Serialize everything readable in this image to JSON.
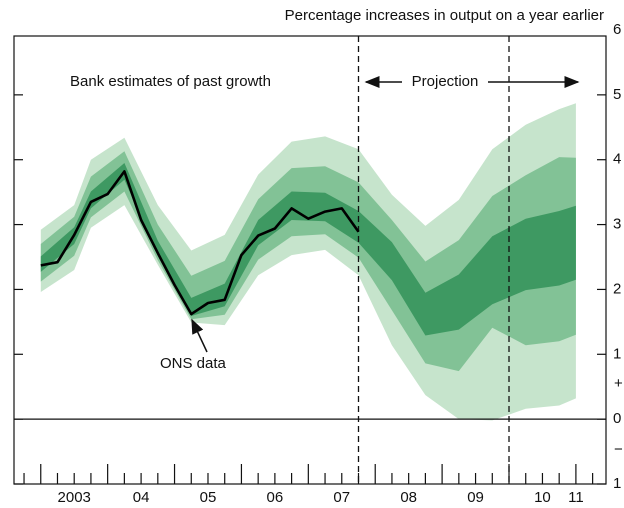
{
  "chart_data": {
    "type": "fan",
    "title": "Percentage increases in output on a year earlier",
    "annotations": [
      "Bank estimates of past growth",
      "Projection",
      "ONS data"
    ],
    "sign_labels": [
      "+",
      "−"
    ],
    "xlim": [
      2002.6,
      2011.45
    ],
    "xticks": [
      {
        "value": 2003.5,
        "label": "2003"
      },
      {
        "value": 2004.5,
        "label": "04"
      },
      {
        "value": 2005.5,
        "label": "05"
      },
      {
        "value": 2006.5,
        "label": "06"
      },
      {
        "value": 2007.5,
        "label": "07"
      },
      {
        "value": 2008.5,
        "label": "08"
      },
      {
        "value": 2009.5,
        "label": "09"
      },
      {
        "value": 2010.5,
        "label": "10"
      },
      {
        "value": 2011.0,
        "label": "11"
      }
    ],
    "ylim": [
      -1,
      6
    ],
    "yticks": [
      {
        "value": -1,
        "label": "1"
      },
      0,
      1,
      2,
      3,
      4,
      5,
      6
    ],
    "vlines": [
      2007.75,
      2010.0
    ],
    "fan": {
      "x": [
        2003.0,
        2003.5,
        2003.75,
        2004.25,
        2004.75,
        2005.25,
        2005.75,
        2006.25,
        2006.75,
        2007.25,
        2007.75,
        2008.25,
        2008.75,
        2009.25,
        2009.75,
        2010.25,
        2010.75,
        2011.0
      ],
      "bands": [
        {
          "color": "#c6e4cc",
          "upper": [
            2.92,
            3.3,
            4.0,
            4.34,
            3.3,
            2.6,
            2.84,
            3.77,
            4.28,
            4.36,
            4.16,
            3.46,
            2.98,
            3.38,
            4.16,
            4.54,
            4.78,
            4.87
          ],
          "lower": [
            1.96,
            2.3,
            2.95,
            3.3,
            2.38,
            1.49,
            1.45,
            2.22,
            2.53,
            2.61,
            2.22,
            1.14,
            0.37,
            0.0,
            -0.02,
            0.16,
            0.21,
            0.32
          ]
        },
        {
          "color": "#82c296",
          "upper": [
            2.7,
            3.12,
            3.74,
            4.13,
            3.0,
            2.21,
            2.44,
            3.39,
            3.87,
            3.9,
            3.65,
            3.07,
            2.43,
            2.76,
            3.44,
            3.76,
            4.04,
            4.03
          ],
          "lower": [
            2.12,
            2.52,
            3.11,
            3.51,
            2.45,
            1.54,
            1.61,
            2.46,
            2.82,
            2.85,
            2.49,
            1.68,
            0.86,
            0.74,
            1.41,
            1.14,
            1.2,
            1.3
          ]
        },
        {
          "color": "#3e9962",
          "upper": [
            2.51,
            2.96,
            3.51,
            3.95,
            2.75,
            1.87,
            2.09,
            3.07,
            3.51,
            3.49,
            3.21,
            2.73,
            1.95,
            2.23,
            2.82,
            3.09,
            3.21,
            3.29
          ],
          "lower": [
            2.27,
            2.7,
            3.25,
            3.69,
            2.52,
            1.59,
            1.74,
            2.68,
            3.07,
            3.05,
            2.72,
            2.14,
            1.29,
            1.38,
            1.77,
            1.99,
            2.06,
            2.15
          ]
        }
      ]
    },
    "series": [
      {
        "color": "#000000",
        "x": [
          2003.0,
          2003.25,
          2003.5,
          2003.75,
          2004.0,
          2004.25,
          2004.5,
          2004.75,
          2005.0,
          2005.25,
          2005.5,
          2005.75,
          2006.0,
          2006.25,
          2006.5,
          2006.75,
          2007.0,
          2007.25,
          2007.5,
          2007.75
        ],
        "values": [
          2.37,
          2.42,
          2.84,
          3.35,
          3.47,
          3.82,
          3.07,
          2.56,
          2.07,
          1.62,
          1.79,
          1.84,
          2.53,
          2.83,
          2.94,
          3.25,
          3.09,
          3.2,
          3.25,
          2.89
        ]
      }
    ]
  }
}
